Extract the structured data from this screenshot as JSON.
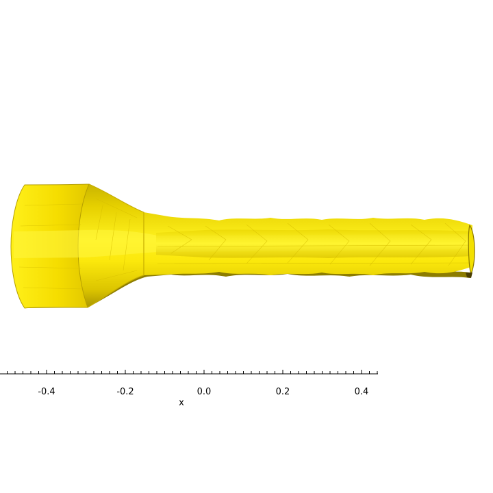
{
  "scene": {
    "object": "tube-surface-mesh",
    "surface_color": "#f7e100",
    "shadow_color": "#9a8a00",
    "edge_color": "#5a4a00"
  },
  "x_axis": {
    "title": "x",
    "range": [
      -0.515,
      0.445
    ],
    "major_ticks": [
      -0.4,
      -0.2,
      0.0,
      0.2,
      0.4
    ],
    "major_tick_labels": [
      "-0.4",
      "-0.2",
      "0.0",
      "0.2",
      "0.4"
    ],
    "minor_step": 0.02,
    "color": "#000000"
  }
}
